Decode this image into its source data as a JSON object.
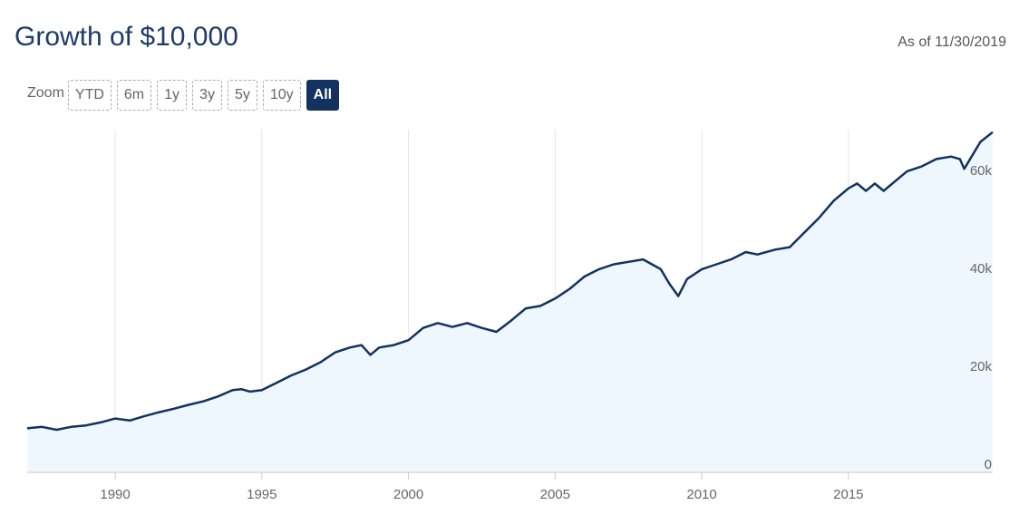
{
  "header": {
    "title": "Growth of $10,000",
    "as_of": "As of 11/30/2019"
  },
  "zoom": {
    "label": "Zoom",
    "buttons": [
      "YTD",
      "6m",
      "1y",
      "3y",
      "5y",
      "10y",
      "All"
    ],
    "active": "All"
  },
  "colors": {
    "line": "#12325f",
    "area": "#eef7fe",
    "grid": "#e6e6e6",
    "active_button": "#12325f"
  },
  "chart_data": {
    "type": "area",
    "title": "Growth of $10,000",
    "xlabel": "",
    "ylabel": "",
    "xlim": [
      1987.0,
      2019.92
    ],
    "ylim": [
      0,
      70000
    ],
    "x_ticks": [
      1990,
      1995,
      2000,
      2005,
      2010,
      2015
    ],
    "y_ticks": [
      0,
      20000,
      40000,
      60000
    ],
    "y_tick_labels": [
      "0",
      "20k",
      "40k",
      "60k"
    ],
    "grid": "vertical",
    "legend": "none",
    "series": [
      {
        "x": [
          1987.0,
          1987.5,
          1988.0,
          1988.5,
          1989.0,
          1989.5,
          1990.0,
          1990.5,
          1991.0,
          1991.5,
          1992.0,
          1992.5,
          1993.0,
          1993.5,
          1994.0,
          1994.3,
          1994.6,
          1995.0,
          1995.5,
          1996.0,
          1996.5,
          1997.0,
          1997.5,
          1998.0,
          1998.4,
          1998.7,
          1999.0,
          1999.5,
          2000.0,
          2000.5,
          2001.0,
          2001.5,
          2002.0,
          2002.5,
          2003.0,
          2003.5,
          2004.0,
          2004.5,
          2005.0,
          2005.5,
          2006.0,
          2006.5,
          2007.0,
          2007.5,
          2008.0,
          2008.3,
          2008.6,
          2008.9,
          2009.2,
          2009.5,
          2010.0,
          2010.5,
          2011.0,
          2011.5,
          2011.9,
          2012.5,
          2013.0,
          2013.5,
          2014.0,
          2014.5,
          2015.0,
          2015.3,
          2015.6,
          2015.9,
          2016.2,
          2016.6,
          2017.0,
          2017.5,
          2018.0,
          2018.5,
          2018.8,
          2018.95,
          2019.2,
          2019.5,
          2019.92
        ],
        "y": [
          9000,
          9300,
          8700,
          9300,
          9600,
          10200,
          11000,
          10600,
          11500,
          12300,
          13000,
          13800,
          14500,
          15500,
          16800,
          17000,
          16500,
          16800,
          18300,
          19800,
          21000,
          22500,
          24500,
          25500,
          26000,
          24000,
          25500,
          26000,
          27000,
          29500,
          30500,
          29700,
          30500,
          29500,
          28700,
          31000,
          33500,
          34000,
          35500,
          37500,
          40000,
          41500,
          42500,
          43000,
          43500,
          42500,
          41500,
          38500,
          36000,
          39500,
          41500,
          42500,
          43500,
          45000,
          44500,
          45500,
          46000,
          49000,
          52000,
          55500,
          58000,
          59000,
          57500,
          59000,
          57500,
          59500,
          61500,
          62500,
          64000,
          64500,
          64000,
          62000,
          64500,
          67500,
          69500
        ]
      }
    ]
  }
}
